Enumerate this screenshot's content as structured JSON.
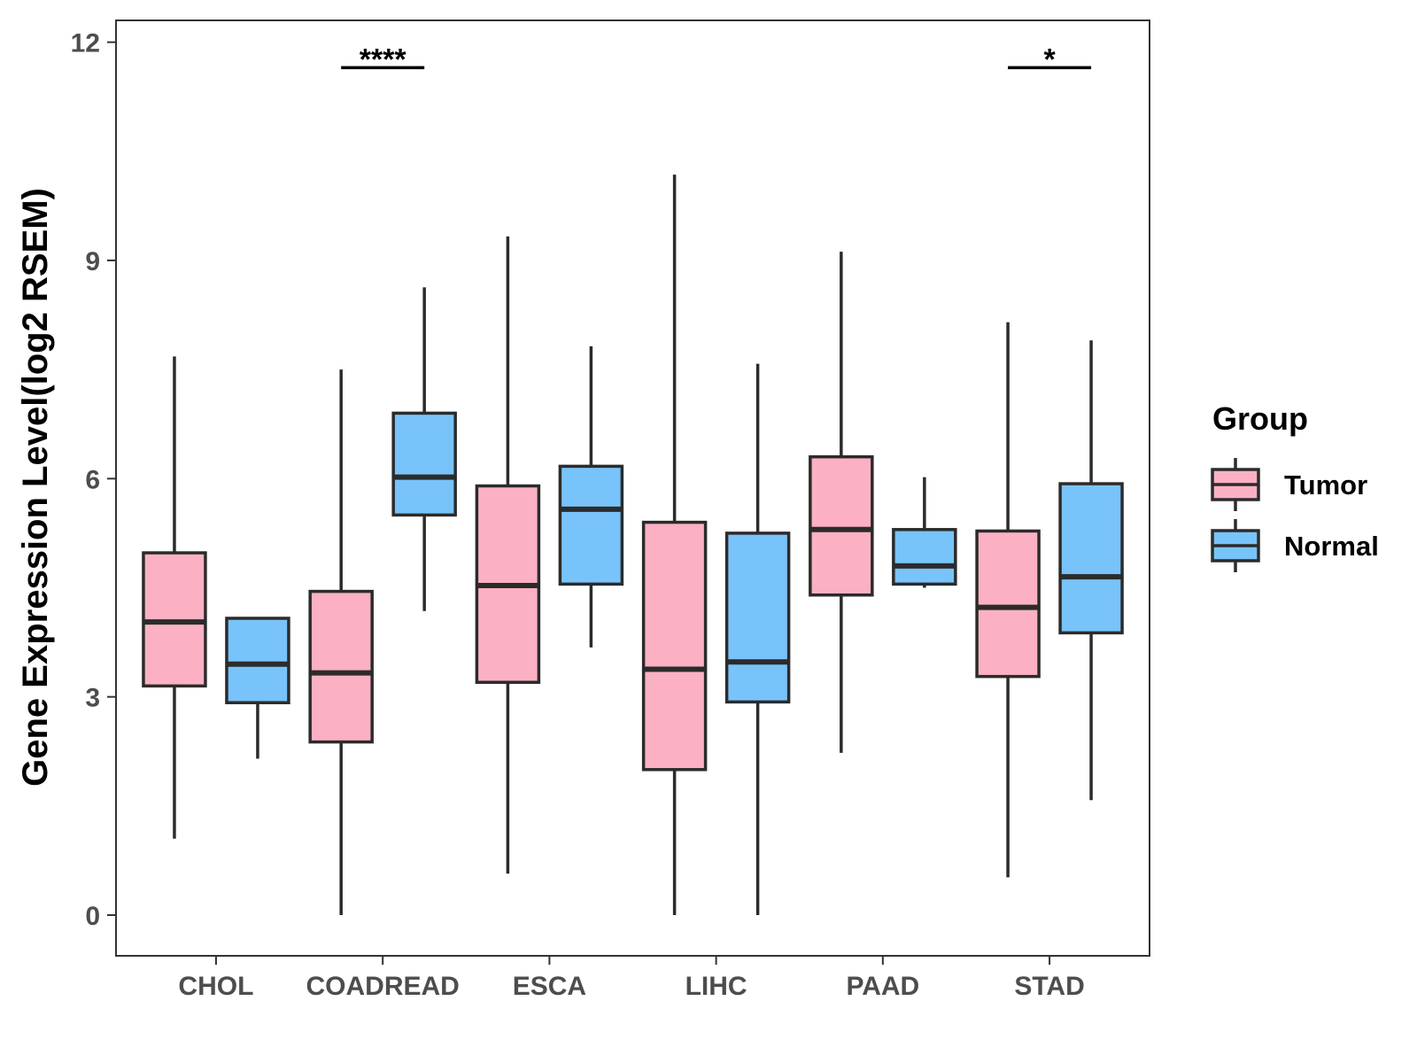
{
  "chart_data": {
    "type": "boxplot",
    "ylabel": "Gene Expression Level(log2 RSEM)",
    "xlabel": "",
    "ylim": [
      -0.56,
      12.3
    ],
    "yticks": [
      0,
      3,
      6,
      9,
      12
    ],
    "categories": [
      "CHOL",
      "COADREAD",
      "ESCA",
      "LIHC",
      "PAAD",
      "STAD"
    ],
    "legend": {
      "title": "Group",
      "position": "right",
      "entries": [
        {
          "name": "Tumor",
          "color": "#fbb1c3"
        },
        {
          "name": "Normal",
          "color": "#78c3f9"
        }
      ]
    },
    "series": [
      {
        "name": "Tumor",
        "color": "#fbb1c3",
        "boxes": [
          {
            "category": "CHOL",
            "min": 1.05,
            "q1": 3.15,
            "median": 4.03,
            "q3": 4.98,
            "max": 7.68
          },
          {
            "category": "COADREAD",
            "min": 0.0,
            "q1": 2.38,
            "median": 3.33,
            "q3": 4.45,
            "max": 7.5
          },
          {
            "category": "ESCA",
            "min": 0.57,
            "q1": 3.2,
            "median": 4.53,
            "q3": 5.9,
            "max": 9.33
          },
          {
            "category": "LIHC",
            "min": 0.0,
            "q1": 2.0,
            "median": 3.38,
            "q3": 5.4,
            "max": 10.18
          },
          {
            "category": "PAAD",
            "min": 2.23,
            "q1": 4.4,
            "median": 5.3,
            "q3": 6.3,
            "max": 9.12
          },
          {
            "category": "STAD",
            "min": 0.52,
            "q1": 3.28,
            "median": 4.23,
            "q3": 5.28,
            "max": 8.15
          }
        ]
      },
      {
        "name": "Normal",
        "color": "#78c3f9",
        "boxes": [
          {
            "category": "CHOL",
            "min": 2.15,
            "q1": 2.92,
            "median": 3.45,
            "q3": 4.08,
            "max": 4.08
          },
          {
            "category": "COADREAD",
            "min": 4.18,
            "q1": 5.5,
            "median": 6.02,
            "q3": 6.9,
            "max": 8.63
          },
          {
            "category": "ESCA",
            "min": 3.68,
            "q1": 4.55,
            "median": 5.58,
            "q3": 6.17,
            "max": 7.82
          },
          {
            "category": "LIHC",
            "min": 0.0,
            "q1": 2.93,
            "median": 3.48,
            "q3": 5.25,
            "max": 7.58
          },
          {
            "category": "PAAD",
            "min": 4.5,
            "q1": 4.55,
            "median": 4.8,
            "q3": 5.3,
            "max": 6.02
          },
          {
            "category": "STAD",
            "min": 1.58,
            "q1": 3.88,
            "median": 4.65,
            "q3": 5.93,
            "max": 7.9
          }
        ]
      }
    ],
    "annotations": [
      {
        "category": "COADREAD",
        "label": "****",
        "y": 11.65
      },
      {
        "category": "STAD",
        "label": "*",
        "y": 11.65
      }
    ]
  }
}
